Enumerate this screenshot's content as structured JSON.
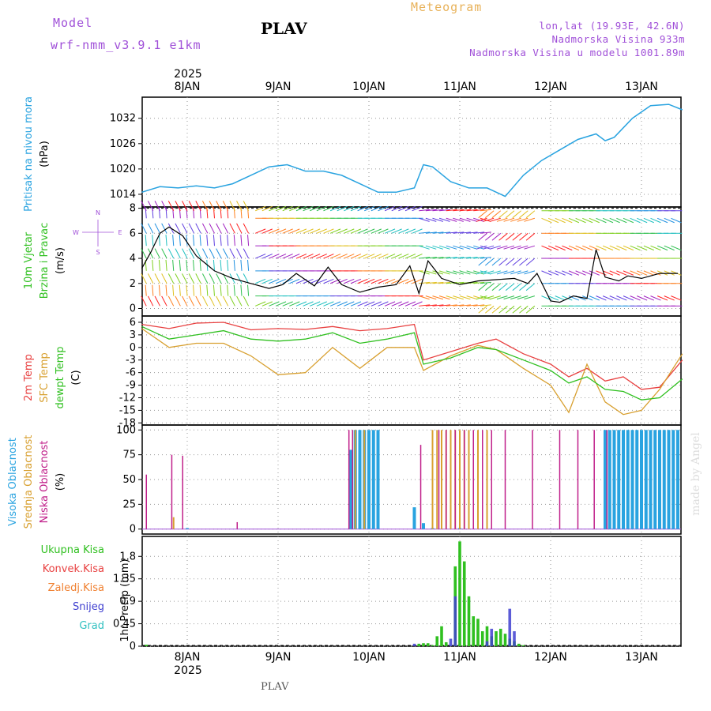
{
  "header": {
    "model_label": "Model",
    "model_name": "wrf-nmm_v3.9.1  e1km",
    "station": "PLAV",
    "meteogram": "Meteogram",
    "lonlat": "lon,lat (19.93E, 42.6N)",
    "elevation": "Nadmorska Visina 933m",
    "model_elevation": "Nadmorska Visina u modelu 1001.89m",
    "footer_station": "PLAV",
    "watermark": "made by Angel"
  },
  "colors": {
    "pressure": "#29a3e0",
    "wind_speed": "#000000",
    "gust": "#e84040",
    "temp2m": "#e84040",
    "sfc_temp": "#d8a030",
    "dewpt": "#30c020",
    "high_cloud": "#29a3e0",
    "mid_cloud": "#d8a030",
    "low_cloud": "#c0208a",
    "total_precip": "#30c020",
    "snow": "#4040d0",
    "model": "#a050d8"
  },
  "chart_data": [
    {
      "type": "line",
      "panel": "pressure",
      "ylabel_lines": [
        "Pritisak na nivou mora",
        "(hPa)"
      ],
      "yticks": [
        1014,
        1020,
        1026,
        1032
      ],
      "ylim": [
        1011,
        1037
      ],
      "x_days": [
        0.0,
        0.2,
        0.4,
        0.6,
        0.8,
        1.0,
        1.2,
        1.4,
        1.6,
        1.8,
        2.0,
        2.2,
        2.4,
        2.6,
        2.8,
        3.0,
        3.1,
        3.2,
        3.4,
        3.6,
        3.8,
        4.0,
        4.2,
        4.4,
        4.6,
        4.8,
        5.0,
        5.1,
        5.2,
        5.4,
        5.6,
        5.8,
        5.95
      ],
      "values": [
        1014.5,
        1015.8,
        1015.5,
        1016.0,
        1015.5,
        1016.5,
        1018.5,
        1020.5,
        1021.0,
        1019.5,
        1019.5,
        1018.5,
        1016.5,
        1014.5,
        1014.5,
        1015.5,
        1021.0,
        1020.5,
        1017.0,
        1015.5,
        1015.5,
        1013.5,
        1018.5,
        1022.0,
        1024.5,
        1027.0,
        1028.3,
        1026.7,
        1027.5,
        1032.0,
        1035.0,
        1035.3,
        1034.0
      ]
    },
    {
      "type": "line",
      "panel": "wind",
      "ylabel_lines": [
        "10m Vjetar",
        "Brzina i Pravac",
        "(m/s)"
      ],
      "compass": {
        "top": "N",
        "left": "W",
        "right": "E",
        "bottom": "S"
      },
      "yticks": [
        0,
        2,
        4,
        6,
        8
      ],
      "ylim": [
        -0.6,
        8.1
      ],
      "x_days": [
        0.0,
        0.1,
        0.2,
        0.3,
        0.45,
        0.6,
        0.8,
        1.0,
        1.2,
        1.4,
        1.55,
        1.7,
        1.9,
        2.05,
        2.2,
        2.4,
        2.6,
        2.8,
        2.95,
        3.05,
        3.15,
        3.3,
        3.5,
        3.7,
        3.9,
        4.1,
        4.25,
        4.35,
        4.5,
        4.6,
        4.75,
        4.9,
        5.0,
        5.1,
        5.25,
        5.35,
        5.5,
        5.7,
        5.9
      ],
      "series": [
        {
          "name": "",
          "values": [
            3.2,
            4.5,
            6.0,
            6.5,
            5.8,
            4.2,
            3.0,
            2.4,
            2.0,
            1.6,
            1.9,
            2.8,
            1.8,
            3.3,
            1.9,
            1.3,
            1.7,
            1.9,
            3.4,
            1.2,
            3.8,
            2.4,
            1.9,
            2.2,
            2.3,
            2.4,
            2.0,
            2.8,
            0.6,
            0.5,
            1.0,
            0.8,
            4.7,
            2.5,
            2.2,
            2.6,
            2.4,
            2.8,
            2.8
          ]
        }
      ]
    },
    {
      "type": "line",
      "panel": "temperature",
      "ylabel_lines": [
        "2m Temp",
        "SFC Temp",
        "dewpt Temp",
        "(C)"
      ],
      "yticks": [
        6,
        3,
        0,
        -3,
        -6,
        -9,
        -12,
        -15,
        -18
      ],
      "ylim": [
        -18.5,
        7.5
      ],
      "x_days": [
        0.0,
        0.3,
        0.6,
        0.9,
        1.2,
        1.5,
        1.8,
        2.1,
        2.4,
        2.7,
        3.0,
        3.1,
        3.4,
        3.7,
        3.9,
        4.2,
        4.5,
        4.7,
        4.9,
        5.1,
        5.3,
        5.5,
        5.7,
        5.95
      ],
      "series": [
        {
          "name": "2m Temp",
          "values": [
            5.5,
            4.5,
            5.8,
            6.0,
            4.2,
            4.5,
            4.3,
            5.0,
            4.0,
            4.5,
            5.5,
            -3.0,
            -1.0,
            1.0,
            2.0,
            -1.5,
            -4.0,
            -7.0,
            -5.0,
            -8.0,
            -7.0,
            -10.0,
            -9.5,
            -3.0
          ]
        },
        {
          "name": "SFC Temp",
          "values": [
            4.5,
            0.0,
            1.0,
            1.0,
            -2.0,
            -6.5,
            -6.0,
            0.0,
            -5.0,
            0.0,
            0.0,
            -5.5,
            -2.0,
            0.5,
            -0.5,
            -5.0,
            -9.0,
            -15.5,
            -4.0,
            -13.0,
            -16.0,
            -15.0,
            -10.0,
            -1.5
          ]
        },
        {
          "name": "dewpt Temp",
          "values": [
            5.0,
            2.0,
            3.0,
            4.0,
            2.0,
            1.5,
            2.0,
            3.5,
            1.0,
            2.0,
            3.5,
            -4.0,
            -2.5,
            0.0,
            -0.5,
            -3.0,
            -5.5,
            -8.5,
            -7.0,
            -10.0,
            -10.5,
            -12.5,
            -12.0,
            -7.5
          ]
        }
      ]
    },
    {
      "type": "bar",
      "panel": "clouds",
      "ylabel_lines": [
        "Visoka Oblacnost",
        "Srednja Oblacnost",
        "Niska Oblacnost",
        "(%)"
      ],
      "yticks": [
        0,
        25,
        50,
        75,
        100
      ],
      "ylim": [
        -5,
        105
      ],
      "series": [
        {
          "name": "Visoka Oblacnost",
          "x_days": [
            0.5,
            2.3,
            2.35,
            2.4,
            2.45,
            2.5,
            2.55,
            2.6,
            3.0,
            3.1,
            3.2,
            3.5,
            5.1,
            5.15,
            5.2,
            5.25,
            5.3,
            5.35,
            5.4,
            5.45,
            5.5,
            5.55,
            5.6,
            5.65,
            5.7,
            5.75,
            5.8,
            5.85,
            5.9
          ],
          "values": [
            1,
            80,
            100,
            100,
            100,
            100,
            100,
            100,
            22,
            6,
            1,
            1,
            100,
            100,
            100,
            100,
            100,
            100,
            100,
            100,
            100,
            100,
            100,
            100,
            100,
            100,
            100,
            100,
            100
          ]
        },
        {
          "name": "Srednja Oblacnost",
          "x_days": [
            0.35,
            2.35,
            2.45,
            3.2,
            3.25,
            3.3,
            3.35,
            3.4,
            3.45,
            3.5,
            3.55,
            3.6,
            3.7,
            3.8
          ],
          "values": [
            12,
            100,
            100,
            100,
            100,
            100,
            100,
            100,
            100,
            100,
            100,
            100,
            100,
            100
          ]
        },
        {
          "name": "Niska Oblacnost",
          "x_days": [
            0.05,
            0.33,
            0.45,
            1.05,
            2.28,
            2.32,
            3.07,
            3.27,
            3.35,
            3.45,
            3.55,
            3.65,
            3.75,
            3.85,
            4.0,
            4.3,
            4.6,
            4.8,
            4.98,
            5.12
          ],
          "values": [
            55,
            75,
            74,
            7,
            100,
            100,
            85,
            100,
            100,
            100,
            100,
            100,
            100,
            100,
            100,
            100,
            100,
            100,
            100,
            100
          ]
        }
      ]
    },
    {
      "type": "bar",
      "panel": "precip",
      "ylabel_lines": [
        "1hr Precip (mm)"
      ],
      "legend": [
        "Ukupna Kisa",
        "Konvek.Kisa",
        "Zaledj.Kisa",
        "Snijeg",
        "Grad"
      ],
      "legend_colors": [
        "#30c020",
        "#e84040",
        "#f08030",
        "#4040d0",
        "#30c0c0"
      ],
      "yticks": [
        0,
        0.45,
        0.9,
        1.35,
        1.8
      ],
      "ylim": [
        0,
        2.2
      ],
      "series": [
        {
          "name": "Ukupna Kisa",
          "x_days": [
            0.05,
            3.05,
            3.1,
            3.15,
            3.2,
            3.25,
            3.3,
            3.35,
            3.45,
            3.5,
            3.55,
            3.6,
            3.65,
            3.7,
            3.75,
            3.8,
            3.85,
            3.9,
            3.95,
            4.0,
            4.05,
            4.1,
            4.15,
            4.2
          ],
          "values": [
            0.03,
            0.05,
            0.06,
            0.06,
            0.02,
            0.2,
            0.4,
            0.08,
            1.6,
            2.1,
            1.7,
            1.0,
            0.6,
            0.55,
            0.3,
            0.4,
            0.2,
            0.3,
            0.35,
            0.25,
            0.15,
            0.1,
            0.05,
            0.02
          ]
        },
        {
          "name": "Snijeg",
          "x_days": [
            3.0,
            3.4,
            3.45,
            3.8,
            3.85,
            4.05,
            4.1
          ],
          "values": [
            0.05,
            0.15,
            1.0,
            0.1,
            0.35,
            0.75,
            0.3
          ]
        }
      ]
    }
  ],
  "x_axis": {
    "start_day_label": "8JAN",
    "year": "2025",
    "tick_labels": [
      "8JAN",
      "9JAN",
      "10JAN",
      "11JAN",
      "12JAN",
      "13JAN"
    ]
  }
}
